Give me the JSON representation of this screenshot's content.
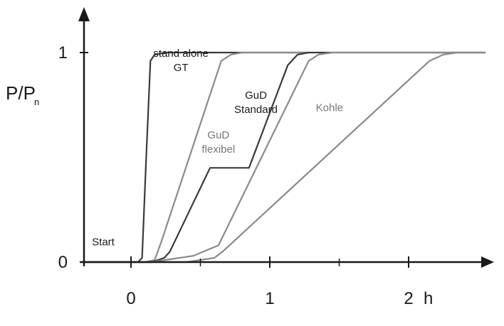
{
  "chart_data": {
    "type": "line",
    "title": "",
    "xlabel": "h",
    "ylabel": "P/P",
    "ylabel_subscript": "n",
    "xlim": [
      -0.35,
      2.65
    ],
    "ylim": [
      0,
      1.06
    ],
    "x_ticks": [
      0,
      1,
      2
    ],
    "x_tick_labels": [
      "0",
      "1",
      "2"
    ],
    "minor_x_ticks": [
      0.5,
      1.5
    ],
    "y_ticks": [
      0,
      1
    ],
    "y_tick_labels": [
      "0",
      "1"
    ],
    "grid": false,
    "colors": {
      "axis": "#1a1a1a",
      "dark_curve": "#3a3a3a",
      "light_curve": "#8a8a8a"
    },
    "annotations": [
      {
        "text": "Start",
        "x": -0.2,
        "y": 0.08
      }
    ],
    "series": [
      {
        "label_lines": [
          "stand alone",
          "GT"
        ],
        "color": "#3a3a3a",
        "points": [
          [
            -0.35,
            0
          ],
          [
            0.05,
            0
          ],
          [
            0.08,
            0.02
          ],
          [
            0.11,
            0.5
          ],
          [
            0.14,
            0.96
          ],
          [
            0.17,
            0.99
          ],
          [
            0.25,
            1
          ],
          [
            1.28,
            1
          ]
        ],
        "label_anchor": [
          0.36,
          0.98
        ]
      },
      {
        "label_lines": [
          "GuD",
          "flexibel"
        ],
        "color": "#8a8a8a",
        "points": [
          [
            -0.35,
            0
          ],
          [
            0.1,
            0
          ],
          [
            0.17,
            0.01
          ],
          [
            0.22,
            0.1
          ],
          [
            0.65,
            0.96
          ],
          [
            0.72,
            0.99
          ],
          [
            0.8,
            1
          ],
          [
            1.28,
            1
          ]
        ],
        "label_anchor": [
          0.63,
          0.59
        ]
      },
      {
        "label_lines": [
          "GuD",
          "Standard"
        ],
        "color": "#3a3a3a",
        "points": [
          [
            -0.35,
            0
          ],
          [
            0.15,
            0
          ],
          [
            0.24,
            0.02
          ],
          [
            0.28,
            0.05
          ],
          [
            0.57,
            0.45
          ],
          [
            0.85,
            0.45
          ],
          [
            1.13,
            0.94
          ],
          [
            1.2,
            0.99
          ],
          [
            1.28,
            1
          ],
          [
            2.55,
            1
          ]
        ],
        "label_anchor": [
          0.9,
          0.78
        ]
      },
      {
        "label_lines": [
          "Kohle"
        ],
        "color": "#8a8a8a",
        "points": [
          [
            -0.35,
            0
          ],
          [
            0.15,
            0
          ],
          [
            0.45,
            0.03
          ],
          [
            0.63,
            0.08
          ],
          [
            1.28,
            0.96
          ],
          [
            1.35,
            0.99
          ],
          [
            1.45,
            1
          ],
          [
            2.55,
            1
          ]
        ],
        "label_anchor": [
          1.43,
          0.72
        ]
      },
      {
        "label_lines": [],
        "color": "#8a8a8a",
        "points": [
          [
            -0.35,
            0
          ],
          [
            0.4,
            0
          ],
          [
            0.6,
            0.02
          ],
          [
            0.66,
            0.05
          ],
          [
            2.15,
            0.96
          ],
          [
            2.25,
            0.99
          ],
          [
            2.35,
            1
          ],
          [
            2.55,
            1
          ]
        ],
        "label_anchor": null
      }
    ]
  }
}
